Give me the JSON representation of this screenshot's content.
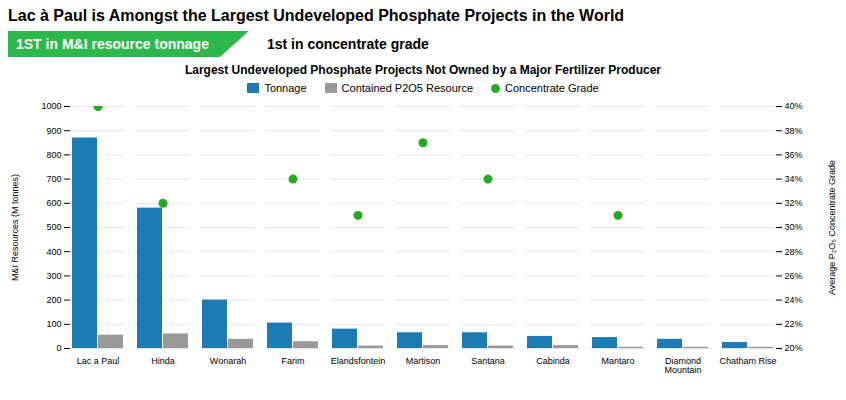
{
  "chart_data": {
    "type": "bar",
    "title": "Lac à Paul is Amongst the Largest Undeveloped Phosphate Projects in the World",
    "subtitle": "Largest Undeveloped Phosphate Projects Not Owned by a Major Fertilizer Producer",
    "annotations": [
      "1ST in M&I resource tonnage",
      "1st in concentrate grade"
    ],
    "categories": [
      "Lac a Paul",
      "Hinda",
      "Wonarah",
      "Farim",
      "Elandsfontein",
      "Martison",
      "Santana",
      "Cabinda",
      "Mantaro",
      "Diamond\nMountain",
      "Chatham Rise"
    ],
    "series": [
      {
        "name": "Tonnage",
        "type": "bar",
        "color": "#1c7bb5",
        "values": [
          870,
          580,
          200,
          105,
          80,
          65,
          65,
          50,
          45,
          38,
          25
        ]
      },
      {
        "name": "Contained P2O5 Resource",
        "type": "bar",
        "color": "#999999",
        "values": [
          55,
          60,
          38,
          28,
          10,
          12,
          10,
          12,
          5,
          5,
          5
        ]
      },
      {
        "name": "Concentrate Grade",
        "type": "scatter",
        "axis": "y2",
        "color": "#22aa22",
        "marker": "circle",
        "values": [
          40,
          32,
          null,
          34,
          31,
          37,
          34,
          null,
          31,
          null,
          null
        ]
      }
    ],
    "ylabel": "M&I Resources (M tonnes)",
    "y2label": "Average P₂O₅ Concentrate Grade",
    "ylim": [
      0,
      1000
    ],
    "yticks": [
      0,
      100,
      200,
      300,
      400,
      500,
      600,
      700,
      800,
      900,
      1000
    ],
    "y2lim": [
      20,
      40
    ],
    "y2ticks": [
      {
        "value": 20,
        "label": "20%"
      },
      {
        "value": 22,
        "label": "22%"
      },
      {
        "value": 24,
        "label": "24%"
      },
      {
        "value": 26,
        "label": "26%"
      },
      {
        "value": 28,
        "label": "28%"
      },
      {
        "value": 30,
        "label": "30%"
      },
      {
        "value": 32,
        "label": "32%"
      },
      {
        "value": 34,
        "label": "34%"
      },
      {
        "value": 36,
        "label": "36%"
      },
      {
        "value": 38,
        "label": "38%"
      },
      {
        "value": 40,
        "label": "40%"
      }
    ],
    "grid": true,
    "legend": "top"
  }
}
